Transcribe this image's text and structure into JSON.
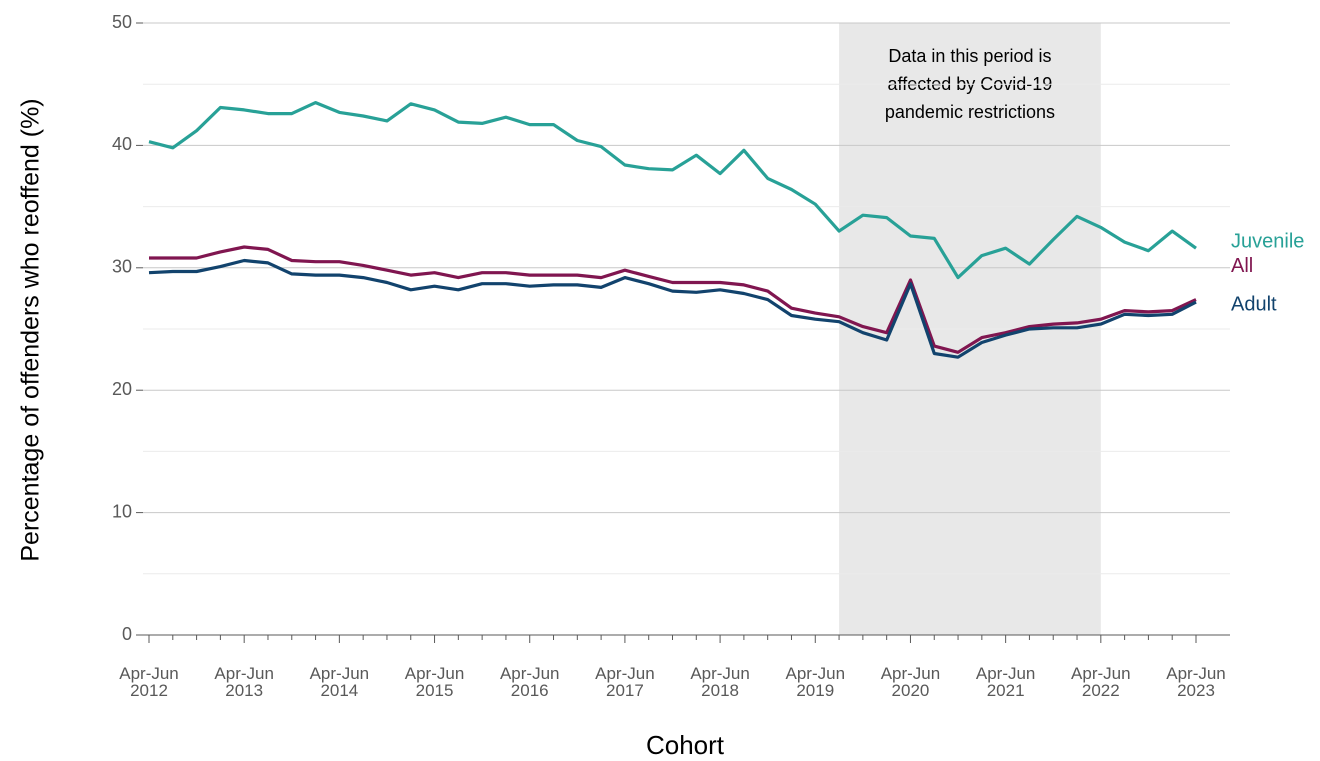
{
  "chart_data": {
    "type": "line",
    "x_label": "Cohort",
    "y_label": "Percentage of offenders who reoffend (%)",
    "categories": [
      "Apr-Jun\n2012",
      null,
      null,
      null,
      "Apr-Jun\n2013",
      null,
      null,
      null,
      "Apr-Jun\n2014",
      null,
      null,
      null,
      "Apr-Jun\n2015",
      null,
      null,
      null,
      "Apr-Jun\n2016",
      null,
      null,
      null,
      "Apr-Jun\n2017",
      null,
      null,
      null,
      "Apr-Jun\n2018",
      null,
      null,
      null,
      "Apr-Jun\n2019",
      null,
      null,
      null,
      "Apr-Jun\n2020",
      null,
      null,
      null,
      "Apr-Jun\n2021",
      null,
      null,
      null,
      "Apr-Jun\n2022",
      null,
      null,
      null,
      "Apr-Jun\n2023"
    ],
    "series": [
      {
        "name": "Juvenile",
        "color": "#28a197",
        "values": [
          40.3,
          39.8,
          41.2,
          43.1,
          42.9,
          42.6,
          42.6,
          43.5,
          42.7,
          42.4,
          42.0,
          43.4,
          42.9,
          41.9,
          41.8,
          42.3,
          41.7,
          41.7,
          40.4,
          39.9,
          38.4,
          38.1,
          38.0,
          39.2,
          37.7,
          39.6,
          37.3,
          36.4,
          35.2,
          33.0,
          34.3,
          34.1,
          32.6,
          32.4,
          29.2,
          31.0,
          31.6,
          30.3,
          32.3,
          34.2,
          33.3,
          32.1,
          31.4,
          33.0,
          31.6
        ]
      },
      {
        "name": "All",
        "color": "#801650",
        "values": [
          30.8,
          30.8,
          30.8,
          31.3,
          31.7,
          31.5,
          30.6,
          30.5,
          30.5,
          30.2,
          29.8,
          29.4,
          29.6,
          29.2,
          29.6,
          29.6,
          29.4,
          29.4,
          29.4,
          29.2,
          29.8,
          29.3,
          28.8,
          28.8,
          28.8,
          28.6,
          28.1,
          26.7,
          26.3,
          26.0,
          25.2,
          24.7,
          29.0,
          23.6,
          23.1,
          24.3,
          24.7,
          25.2,
          25.4,
          25.5,
          25.8,
          26.5,
          26.4,
          26.5,
          27.4
        ]
      },
      {
        "name": "Adult",
        "color": "#12436d",
        "values": [
          29.6,
          29.7,
          29.7,
          30.1,
          30.6,
          30.4,
          29.5,
          29.4,
          29.4,
          29.2,
          28.8,
          28.2,
          28.5,
          28.2,
          28.7,
          28.7,
          28.5,
          28.6,
          28.6,
          28.4,
          29.2,
          28.7,
          28.1,
          28.0,
          28.2,
          27.9,
          27.4,
          26.1,
          25.8,
          25.6,
          24.7,
          24.1,
          28.7,
          23.0,
          22.7,
          23.9,
          24.5,
          25.0,
          25.1,
          25.1,
          25.4,
          26.2,
          26.1,
          26.2,
          27.2
        ]
      }
    ],
    "ylim": [
      0,
      50
    ],
    "yticks": [
      0,
      10,
      20,
      30,
      40,
      50
    ],
    "minor_yticks": [
      5,
      15,
      25,
      35,
      45
    ],
    "grid": true,
    "legend": "end-of-line",
    "shaded_region": {
      "start_index": 29,
      "end_index": 40,
      "color": "#e8e8e8",
      "text": [
        "Data in this period is",
        "affected by Covid-19",
        "pandemic restrictions"
      ]
    }
  }
}
